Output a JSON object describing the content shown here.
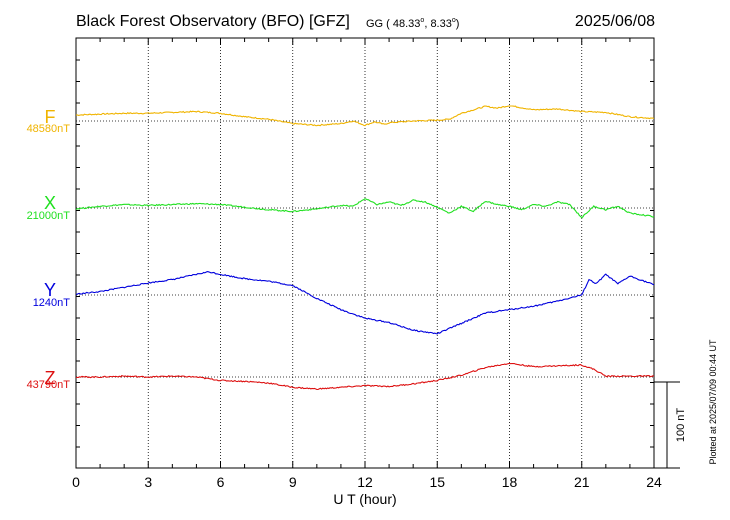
{
  "header": {
    "title": "Black Forest Observatory (BFO)  [GFZ]",
    "coords_prefix": "GG ( 48.33",
    "coords_deg1": "o",
    "coords_mid": ",   8.33",
    "coords_deg2": "o",
    "coords_suffix": ")",
    "date": "2025/06/08"
  },
  "footer": {
    "plotted": "Plotted at 2025/07/09 00:44 UT"
  },
  "scale_bar": {
    "label": "100 nT",
    "value": 100
  },
  "chart_data": {
    "type": "line",
    "xlabel": "U T (hour)",
    "xlim": [
      0,
      24
    ],
    "x_ticks": [
      "0",
      "3",
      "6",
      "9",
      "12",
      "15",
      "18",
      "21",
      "24"
    ],
    "grid": true,
    "series": [
      {
        "name": "F",
        "baseline_label": "48580nT",
        "baseline": 48580,
        "color": "#f0b400",
        "points": [
          [
            0,
            48587
          ],
          [
            1,
            48588
          ],
          [
            2,
            48589
          ],
          [
            3,
            48589
          ],
          [
            4,
            48590
          ],
          [
            5,
            48591
          ],
          [
            6,
            48589
          ],
          [
            7,
            48585
          ],
          [
            8,
            48582
          ],
          [
            9,
            48577
          ],
          [
            10,
            48575
          ],
          [
            11,
            48577
          ],
          [
            11.5,
            48580
          ],
          [
            12,
            48575
          ],
          [
            12.4,
            48579
          ],
          [
            12.8,
            48576
          ],
          [
            13,
            48578
          ],
          [
            14,
            48580
          ],
          [
            15,
            48581
          ],
          [
            15.5,
            48582
          ],
          [
            16,
            48589
          ],
          [
            17,
            48597
          ],
          [
            17.5,
            48595
          ],
          [
            18,
            48598
          ],
          [
            19,
            48593
          ],
          [
            20,
            48594
          ],
          [
            21,
            48591
          ],
          [
            22,
            48590
          ],
          [
            23,
            48585
          ],
          [
            24,
            48583
          ]
        ]
      },
      {
        "name": "X",
        "baseline_label": "21000nT",
        "baseline": 21000,
        "color": "#20e020",
        "points": [
          [
            0,
            20999
          ],
          [
            1,
            21002
          ],
          [
            2,
            21004
          ],
          [
            3,
            21003
          ],
          [
            4,
            21004
          ],
          [
            5,
            21005
          ],
          [
            6,
            21004
          ],
          [
            7,
            21001
          ],
          [
            8,
            20998
          ],
          [
            9,
            20996
          ],
          [
            10,
            20999
          ],
          [
            11,
            21003
          ],
          [
            11.5,
            21002
          ],
          [
            12,
            21011
          ],
          [
            12.5,
            21004
          ],
          [
            13,
            21007
          ],
          [
            13.5,
            21003
          ],
          [
            14,
            21009
          ],
          [
            14.5,
            21007
          ],
          [
            15,
            21001
          ],
          [
            15.5,
            20994
          ],
          [
            16,
            21002
          ],
          [
            16.5,
            20996
          ],
          [
            17,
            21008
          ],
          [
            17.5,
            21004
          ],
          [
            18,
            21002
          ],
          [
            18.5,
            20998
          ],
          [
            19,
            21004
          ],
          [
            19.5,
            21002
          ],
          [
            20,
            21007
          ],
          [
            20.5,
            21004
          ],
          [
            21,
            20989
          ],
          [
            21.5,
            21002
          ],
          [
            22,
            20998
          ],
          [
            22.5,
            21002
          ],
          [
            23,
            20994
          ],
          [
            24,
            20990
          ]
        ]
      },
      {
        "name": "Y",
        "baseline_label": "1240nT",
        "baseline": 1240,
        "color": "#0000dd",
        "points": [
          [
            0,
            1241
          ],
          [
            1,
            1244
          ],
          [
            2,
            1249
          ],
          [
            3,
            1254
          ],
          [
            4,
            1258
          ],
          [
            5,
            1264
          ],
          [
            5.5,
            1267
          ],
          [
            6,
            1264
          ],
          [
            7,
            1259
          ],
          [
            8,
            1256
          ],
          [
            9,
            1251
          ],
          [
            10,
            1236
          ],
          [
            11,
            1223
          ],
          [
            12,
            1213
          ],
          [
            13,
            1208
          ],
          [
            14,
            1199
          ],
          [
            15,
            1195
          ],
          [
            16,
            1207
          ],
          [
            17,
            1219
          ],
          [
            18,
            1223
          ],
          [
            19,
            1227
          ],
          [
            20,
            1233
          ],
          [
            21,
            1240
          ],
          [
            21.3,
            1258
          ],
          [
            21.6,
            1253
          ],
          [
            22,
            1264
          ],
          [
            22.5,
            1253
          ],
          [
            23,
            1262
          ],
          [
            24,
            1252
          ]
        ]
      },
      {
        "name": "Z",
        "baseline_label": "43790nT",
        "baseline": 43790,
        "color": "#dd1010",
        "points": [
          [
            0,
            43790
          ],
          [
            1,
            43790
          ],
          [
            2,
            43791
          ],
          [
            3,
            43790
          ],
          [
            4,
            43791
          ],
          [
            5,
            43790
          ],
          [
            6,
            43786
          ],
          [
            7,
            43785
          ],
          [
            8,
            43783
          ],
          [
            9,
            43778
          ],
          [
            10,
            43776
          ],
          [
            11,
            43778
          ],
          [
            12,
            43780
          ],
          [
            13,
            43779
          ],
          [
            14,
            43782
          ],
          [
            15,
            43786
          ],
          [
            16,
            43792
          ],
          [
            17,
            43801
          ],
          [
            18,
            43806
          ],
          [
            19,
            43802
          ],
          [
            20,
            43803
          ],
          [
            21,
            43804
          ],
          [
            21.5,
            43799
          ],
          [
            22,
            43791
          ],
          [
            23,
            43791
          ],
          [
            24,
            43791
          ]
        ]
      }
    ]
  }
}
